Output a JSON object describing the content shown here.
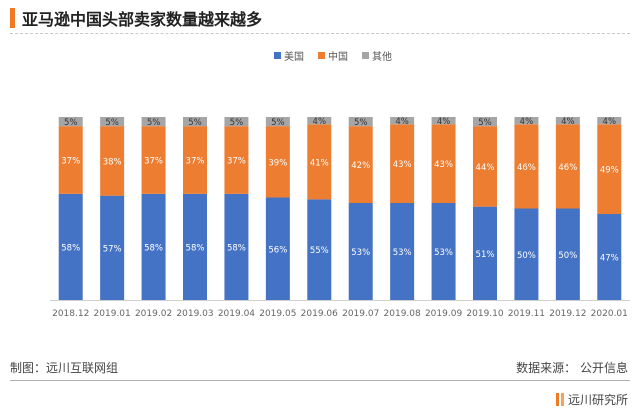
{
  "title": "亚马逊中国头部卖家数量越来越多",
  "legend": [
    {
      "label": "美国",
      "color": "#4472c4"
    },
    {
      "label": "中国",
      "color": "#ed7d31"
    },
    {
      "label": "其他",
      "color": "#a5a5a5"
    }
  ],
  "footer": {
    "source_left": "制图：远川互联网组",
    "source_right": "数据来源： 公开信息",
    "brand": "远川研究所"
  },
  "chart_data": {
    "type": "bar",
    "stacked": true,
    "categories": [
      "2018.12",
      "2019.01",
      "2019.02",
      "2019.03",
      "2019.04",
      "2019.05",
      "2019.06",
      "2019.07",
      "2019.08",
      "2019.09",
      "2019.10",
      "2019.11",
      "2019.12",
      "2020.01"
    ],
    "series": [
      {
        "name": "美国",
        "color": "#4472c4",
        "values": [
          58,
          57,
          58,
          58,
          58,
          56,
          55,
          53,
          53,
          53,
          51,
          50,
          50,
          47
        ]
      },
      {
        "name": "中国",
        "color": "#ed7d31",
        "values": [
          37,
          38,
          37,
          37,
          37,
          39,
          41,
          42,
          43,
          43,
          44,
          46,
          46,
          49
        ]
      },
      {
        "name": "其他",
        "color": "#a5a5a5",
        "values": [
          5,
          5,
          5,
          5,
          5,
          5,
          4,
          5,
          4,
          4,
          5,
          4,
          4,
          4
        ]
      }
    ],
    "value_suffix": "%",
    "ylim": [
      0,
      100
    ],
    "grid": false,
    "legend_position": "top-center"
  }
}
